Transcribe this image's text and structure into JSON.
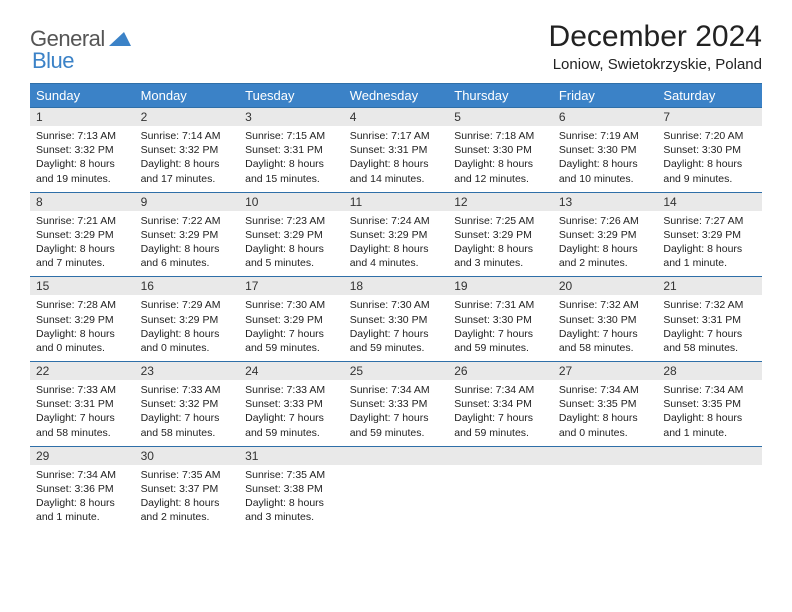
{
  "logo": {
    "part1": "General",
    "part2": "Blue"
  },
  "title": "December 2024",
  "location": "Loniow, Swietokrzyskie, Poland",
  "colors": {
    "header_bg": "#3b82c7",
    "rule": "#2f6fa8",
    "daynum_bg": "#e9e9e9",
    "logo_gray": "#555555",
    "logo_blue": "#3b82c7"
  },
  "typography": {
    "title_fontsize": 30,
    "location_fontsize": 15,
    "head_fontsize": 13,
    "cell_fontsize": 10.5
  },
  "day_headers": [
    "Sunday",
    "Monday",
    "Tuesday",
    "Wednesday",
    "Thursday",
    "Friday",
    "Saturday"
  ],
  "weeks": [
    [
      {
        "n": "1",
        "sr": "7:13 AM",
        "ss": "3:32 PM",
        "dl": "8 hours and 19 minutes."
      },
      {
        "n": "2",
        "sr": "7:14 AM",
        "ss": "3:32 PM",
        "dl": "8 hours and 17 minutes."
      },
      {
        "n": "3",
        "sr": "7:15 AM",
        "ss": "3:31 PM",
        "dl": "8 hours and 15 minutes."
      },
      {
        "n": "4",
        "sr": "7:17 AM",
        "ss": "3:31 PM",
        "dl": "8 hours and 14 minutes."
      },
      {
        "n": "5",
        "sr": "7:18 AM",
        "ss": "3:30 PM",
        "dl": "8 hours and 12 minutes."
      },
      {
        "n": "6",
        "sr": "7:19 AM",
        "ss": "3:30 PM",
        "dl": "8 hours and 10 minutes."
      },
      {
        "n": "7",
        "sr": "7:20 AM",
        "ss": "3:30 PM",
        "dl": "8 hours and 9 minutes."
      }
    ],
    [
      {
        "n": "8",
        "sr": "7:21 AM",
        "ss": "3:29 PM",
        "dl": "8 hours and 7 minutes."
      },
      {
        "n": "9",
        "sr": "7:22 AM",
        "ss": "3:29 PM",
        "dl": "8 hours and 6 minutes."
      },
      {
        "n": "10",
        "sr": "7:23 AM",
        "ss": "3:29 PM",
        "dl": "8 hours and 5 minutes."
      },
      {
        "n": "11",
        "sr": "7:24 AM",
        "ss": "3:29 PM",
        "dl": "8 hours and 4 minutes."
      },
      {
        "n": "12",
        "sr": "7:25 AM",
        "ss": "3:29 PM",
        "dl": "8 hours and 3 minutes."
      },
      {
        "n": "13",
        "sr": "7:26 AM",
        "ss": "3:29 PM",
        "dl": "8 hours and 2 minutes."
      },
      {
        "n": "14",
        "sr": "7:27 AM",
        "ss": "3:29 PM",
        "dl": "8 hours and 1 minute."
      }
    ],
    [
      {
        "n": "15",
        "sr": "7:28 AM",
        "ss": "3:29 PM",
        "dl": "8 hours and 0 minutes."
      },
      {
        "n": "16",
        "sr": "7:29 AM",
        "ss": "3:29 PM",
        "dl": "8 hours and 0 minutes."
      },
      {
        "n": "17",
        "sr": "7:30 AM",
        "ss": "3:29 PM",
        "dl": "7 hours and 59 minutes."
      },
      {
        "n": "18",
        "sr": "7:30 AM",
        "ss": "3:30 PM",
        "dl": "7 hours and 59 minutes."
      },
      {
        "n": "19",
        "sr": "7:31 AM",
        "ss": "3:30 PM",
        "dl": "7 hours and 59 minutes."
      },
      {
        "n": "20",
        "sr": "7:32 AM",
        "ss": "3:30 PM",
        "dl": "7 hours and 58 minutes."
      },
      {
        "n": "21",
        "sr": "7:32 AM",
        "ss": "3:31 PM",
        "dl": "7 hours and 58 minutes."
      }
    ],
    [
      {
        "n": "22",
        "sr": "7:33 AM",
        "ss": "3:31 PM",
        "dl": "7 hours and 58 minutes."
      },
      {
        "n": "23",
        "sr": "7:33 AM",
        "ss": "3:32 PM",
        "dl": "7 hours and 58 minutes."
      },
      {
        "n": "24",
        "sr": "7:33 AM",
        "ss": "3:33 PM",
        "dl": "7 hours and 59 minutes."
      },
      {
        "n": "25",
        "sr": "7:34 AM",
        "ss": "3:33 PM",
        "dl": "7 hours and 59 minutes."
      },
      {
        "n": "26",
        "sr": "7:34 AM",
        "ss": "3:34 PM",
        "dl": "7 hours and 59 minutes."
      },
      {
        "n": "27",
        "sr": "7:34 AM",
        "ss": "3:35 PM",
        "dl": "8 hours and 0 minutes."
      },
      {
        "n": "28",
        "sr": "7:34 AM",
        "ss": "3:35 PM",
        "dl": "8 hours and 1 minute."
      }
    ],
    [
      {
        "n": "29",
        "sr": "7:34 AM",
        "ss": "3:36 PM",
        "dl": "8 hours and 1 minute."
      },
      {
        "n": "30",
        "sr": "7:35 AM",
        "ss": "3:37 PM",
        "dl": "8 hours and 2 minutes."
      },
      {
        "n": "31",
        "sr": "7:35 AM",
        "ss": "3:38 PM",
        "dl": "8 hours and 3 minutes."
      },
      null,
      null,
      null,
      null
    ]
  ],
  "labels": {
    "sunrise": "Sunrise: ",
    "sunset": "Sunset: ",
    "daylight": "Daylight: "
  }
}
